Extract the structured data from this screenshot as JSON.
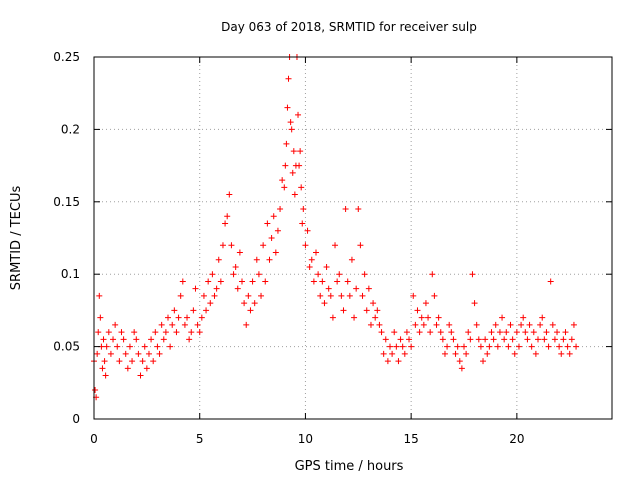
{
  "chart_data": {
    "type": "scatter",
    "title": "Day 063 of 2018, SRMTID for receiver sulp",
    "xlabel": "GPS time / hours",
    "ylabel": "SRMTID / TECUs",
    "xlim": [
      0,
      24.5
    ],
    "ylim": [
      0,
      0.25
    ],
    "x_ticks": [
      0,
      5,
      10,
      15,
      20
    ],
    "x_tick_labels": [
      "0",
      "5",
      "10",
      "15",
      "20"
    ],
    "y_ticks": [
      0,
      0.05,
      0.1,
      0.15,
      0.2,
      0.25
    ],
    "y_tick_labels": [
      "0",
      "0.05",
      "0.1",
      "0.15",
      "0.2",
      "0.25"
    ],
    "grid": true,
    "marker": "+",
    "series": [
      {
        "name": "SRMTID",
        "color": "#ff0000",
        "x": [
          0.0,
          0.05,
          0.1,
          0.15,
          0.2,
          0.25,
          0.3,
          0.35,
          0.4,
          0.45,
          0.5,
          0.55,
          0.6,
          0.7,
          0.8,
          0.9,
          1.0,
          1.1,
          1.2,
          1.3,
          1.4,
          1.5,
          1.6,
          1.7,
          1.8,
          1.9,
          2.0,
          2.1,
          2.2,
          2.3,
          2.4,
          2.5,
          2.6,
          2.7,
          2.8,
          2.9,
          3.0,
          3.1,
          3.2,
          3.3,
          3.4,
          3.5,
          3.6,
          3.7,
          3.8,
          3.9,
          4.0,
          4.1,
          4.2,
          4.3,
          4.4,
          4.5,
          4.6,
          4.7,
          4.8,
          4.9,
          5.0,
          5.1,
          5.2,
          5.3,
          5.4,
          5.5,
          5.6,
          5.7,
          5.8,
          5.9,
          6.0,
          6.1,
          6.2,
          6.3,
          6.4,
          6.5,
          6.6,
          6.7,
          6.8,
          6.9,
          7.0,
          7.1,
          7.2,
          7.3,
          7.4,
          7.5,
          7.6,
          7.7,
          7.8,
          7.9,
          8.0,
          8.1,
          8.2,
          8.3,
          8.4,
          8.5,
          8.6,
          8.7,
          8.8,
          8.9,
          9.0,
          9.05,
          9.1,
          9.15,
          9.2,
          9.25,
          9.3,
          9.35,
          9.4,
          9.45,
          9.5,
          9.55,
          9.6,
          9.65,
          9.7,
          9.75,
          9.8,
          9.85,
          9.9,
          10.0,
          10.1,
          10.2,
          10.3,
          10.4,
          10.5,
          10.6,
          10.7,
          10.8,
          10.9,
          11.0,
          11.1,
          11.2,
          11.3,
          11.4,
          11.5,
          11.6,
          11.7,
          11.8,
          11.9,
          12.0,
          12.1,
          12.2,
          12.3,
          12.4,
          12.5,
          12.6,
          12.7,
          12.8,
          12.9,
          13.0,
          13.1,
          13.2,
          13.3,
          13.4,
          13.5,
          13.6,
          13.7,
          13.8,
          13.9,
          14.0,
          14.1,
          14.2,
          14.3,
          14.4,
          14.5,
          14.6,
          14.7,
          14.8,
          14.9,
          15.0,
          15.1,
          15.2,
          15.3,
          15.4,
          15.5,
          15.6,
          15.7,
          15.8,
          15.9,
          16.0,
          16.1,
          16.2,
          16.3,
          16.4,
          16.5,
          16.6,
          16.7,
          16.8,
          16.9,
          17.0,
          17.1,
          17.2,
          17.3,
          17.4,
          17.5,
          17.6,
          17.7,
          17.8,
          17.9,
          18.0,
          18.1,
          18.2,
          18.3,
          18.4,
          18.5,
          18.6,
          18.7,
          18.8,
          18.9,
          19.0,
          19.1,
          19.2,
          19.3,
          19.4,
          19.5,
          19.6,
          19.7,
          19.8,
          19.9,
          20.0,
          20.1,
          20.2,
          20.3,
          20.4,
          20.5,
          20.6,
          20.7,
          20.8,
          20.9,
          21.0,
          21.1,
          21.2,
          21.3,
          21.4,
          21.5,
          21.6,
          21.7,
          21.8,
          21.9,
          22.0,
          22.1,
          22.2,
          22.3,
          22.4,
          22.5,
          22.6,
          22.7,
          22.8
        ],
        "y": [
          0.04,
          0.02,
          0.015,
          0.045,
          0.06,
          0.085,
          0.07,
          0.05,
          0.035,
          0.055,
          0.04,
          0.03,
          0.05,
          0.06,
          0.045,
          0.055,
          0.065,
          0.05,
          0.04,
          0.06,
          0.055,
          0.045,
          0.035,
          0.05,
          0.04,
          0.06,
          0.055,
          0.045,
          0.03,
          0.04,
          0.05,
          0.035,
          0.045,
          0.055,
          0.04,
          0.06,
          0.05,
          0.045,
          0.065,
          0.055,
          0.06,
          0.07,
          0.05,
          0.065,
          0.075,
          0.06,
          0.07,
          0.085,
          0.095,
          0.065,
          0.07,
          0.055,
          0.06,
          0.075,
          0.09,
          0.065,
          0.06,
          0.07,
          0.085,
          0.075,
          0.095,
          0.08,
          0.1,
          0.085,
          0.09,
          0.11,
          0.095,
          0.12,
          0.135,
          0.14,
          0.155,
          0.12,
          0.1,
          0.105,
          0.09,
          0.115,
          0.095,
          0.08,
          0.065,
          0.085,
          0.075,
          0.095,
          0.08,
          0.11,
          0.1,
          0.085,
          0.12,
          0.095,
          0.135,
          0.11,
          0.125,
          0.14,
          0.115,
          0.13,
          0.145,
          0.165,
          0.16,
          0.175,
          0.19,
          0.215,
          0.235,
          0.25,
          0.205,
          0.2,
          0.17,
          0.185,
          0.155,
          0.175,
          0.25,
          0.21,
          0.175,
          0.185,
          0.16,
          0.135,
          0.145,
          0.12,
          0.13,
          0.105,
          0.11,
          0.095,
          0.115,
          0.1,
          0.085,
          0.095,
          0.08,
          0.105,
          0.09,
          0.085,
          0.07,
          0.12,
          0.095,
          0.1,
          0.085,
          0.075,
          0.145,
          0.095,
          0.085,
          0.11,
          0.07,
          0.09,
          0.145,
          0.12,
          0.085,
          0.1,
          0.075,
          0.09,
          0.065,
          0.08,
          0.07,
          0.075,
          0.065,
          0.06,
          0.045,
          0.055,
          0.04,
          0.05,
          0.045,
          0.06,
          0.05,
          0.04,
          0.055,
          0.05,
          0.045,
          0.06,
          0.055,
          0.05,
          0.085,
          0.065,
          0.075,
          0.06,
          0.07,
          0.065,
          0.08,
          0.07,
          0.06,
          0.1,
          0.085,
          0.065,
          0.07,
          0.06,
          0.055,
          0.045,
          0.05,
          0.065,
          0.06,
          0.055,
          0.045,
          0.05,
          0.04,
          0.035,
          0.05,
          0.045,
          0.06,
          0.055,
          0.1,
          0.08,
          0.065,
          0.055,
          0.05,
          0.04,
          0.055,
          0.045,
          0.05,
          0.06,
          0.055,
          0.065,
          0.05,
          0.06,
          0.07,
          0.055,
          0.06,
          0.05,
          0.065,
          0.055,
          0.045,
          0.06,
          0.05,
          0.065,
          0.07,
          0.06,
          0.055,
          0.065,
          0.05,
          0.06,
          0.045,
          0.055,
          0.065,
          0.07,
          0.055,
          0.06,
          0.05,
          0.095,
          0.065,
          0.055,
          0.06,
          0.05,
          0.045,
          0.055,
          0.06,
          0.05,
          0.045,
          0.055,
          0.065,
          0.05
        ]
      }
    ]
  }
}
